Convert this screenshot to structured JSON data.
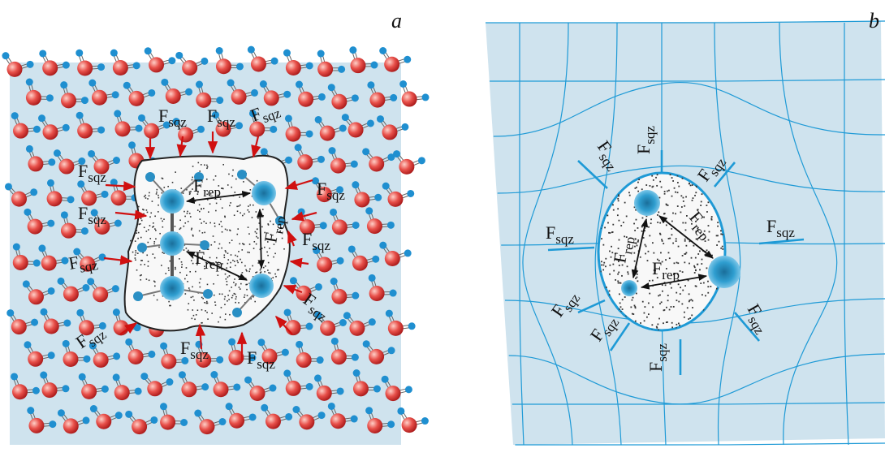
{
  "panels": [
    {
      "label": "a",
      "squeeze_labels": [
        {
          "symbol": "F",
          "subscript": "sqz"
        },
        {
          "symbol": "F",
          "subscript": "sqz"
        },
        {
          "symbol": "F",
          "subscript": "sqz"
        },
        {
          "symbol": "F",
          "subscript": "sqz"
        },
        {
          "symbol": "F",
          "subscript": "sqz"
        },
        {
          "symbol": "F",
          "subscript": "sqz"
        },
        {
          "symbol": "F",
          "subscript": "sqz"
        },
        {
          "symbol": "F",
          "subscript": "sqz"
        },
        {
          "symbol": "F",
          "subscript": "sqz"
        },
        {
          "symbol": "F",
          "subscript": "sqz"
        },
        {
          "symbol": "F",
          "subscript": "sqz"
        },
        {
          "symbol": "F",
          "subscript": "sqz"
        }
      ],
      "repulsion_labels": [
        {
          "symbol": "F",
          "subscript": "rep"
        },
        {
          "symbol": "F",
          "subscript": "rep"
        },
        {
          "symbol": "F",
          "subscript": "rep"
        }
      ]
    },
    {
      "label": "b",
      "squeeze_labels": [
        {
          "symbol": "F",
          "subscript": "sqz"
        },
        {
          "symbol": "F",
          "subscript": "sqz"
        },
        {
          "symbol": "F",
          "subscript": "sqz"
        },
        {
          "symbol": "F",
          "subscript": "sqz"
        },
        {
          "symbol": "F",
          "subscript": "sqz"
        },
        {
          "symbol": "F",
          "subscript": "sqz"
        },
        {
          "symbol": "F",
          "subscript": "sqz"
        },
        {
          "symbol": "F",
          "subscript": "sqz"
        },
        {
          "symbol": "F",
          "subscript": "sqz"
        }
      ],
      "repulsion_labels": [
        {
          "symbol": "F",
          "subscript": "rep"
        },
        {
          "symbol": "F",
          "subscript": "rep"
        },
        {
          "symbol": "F",
          "subscript": "rep"
        }
      ]
    }
  ]
}
